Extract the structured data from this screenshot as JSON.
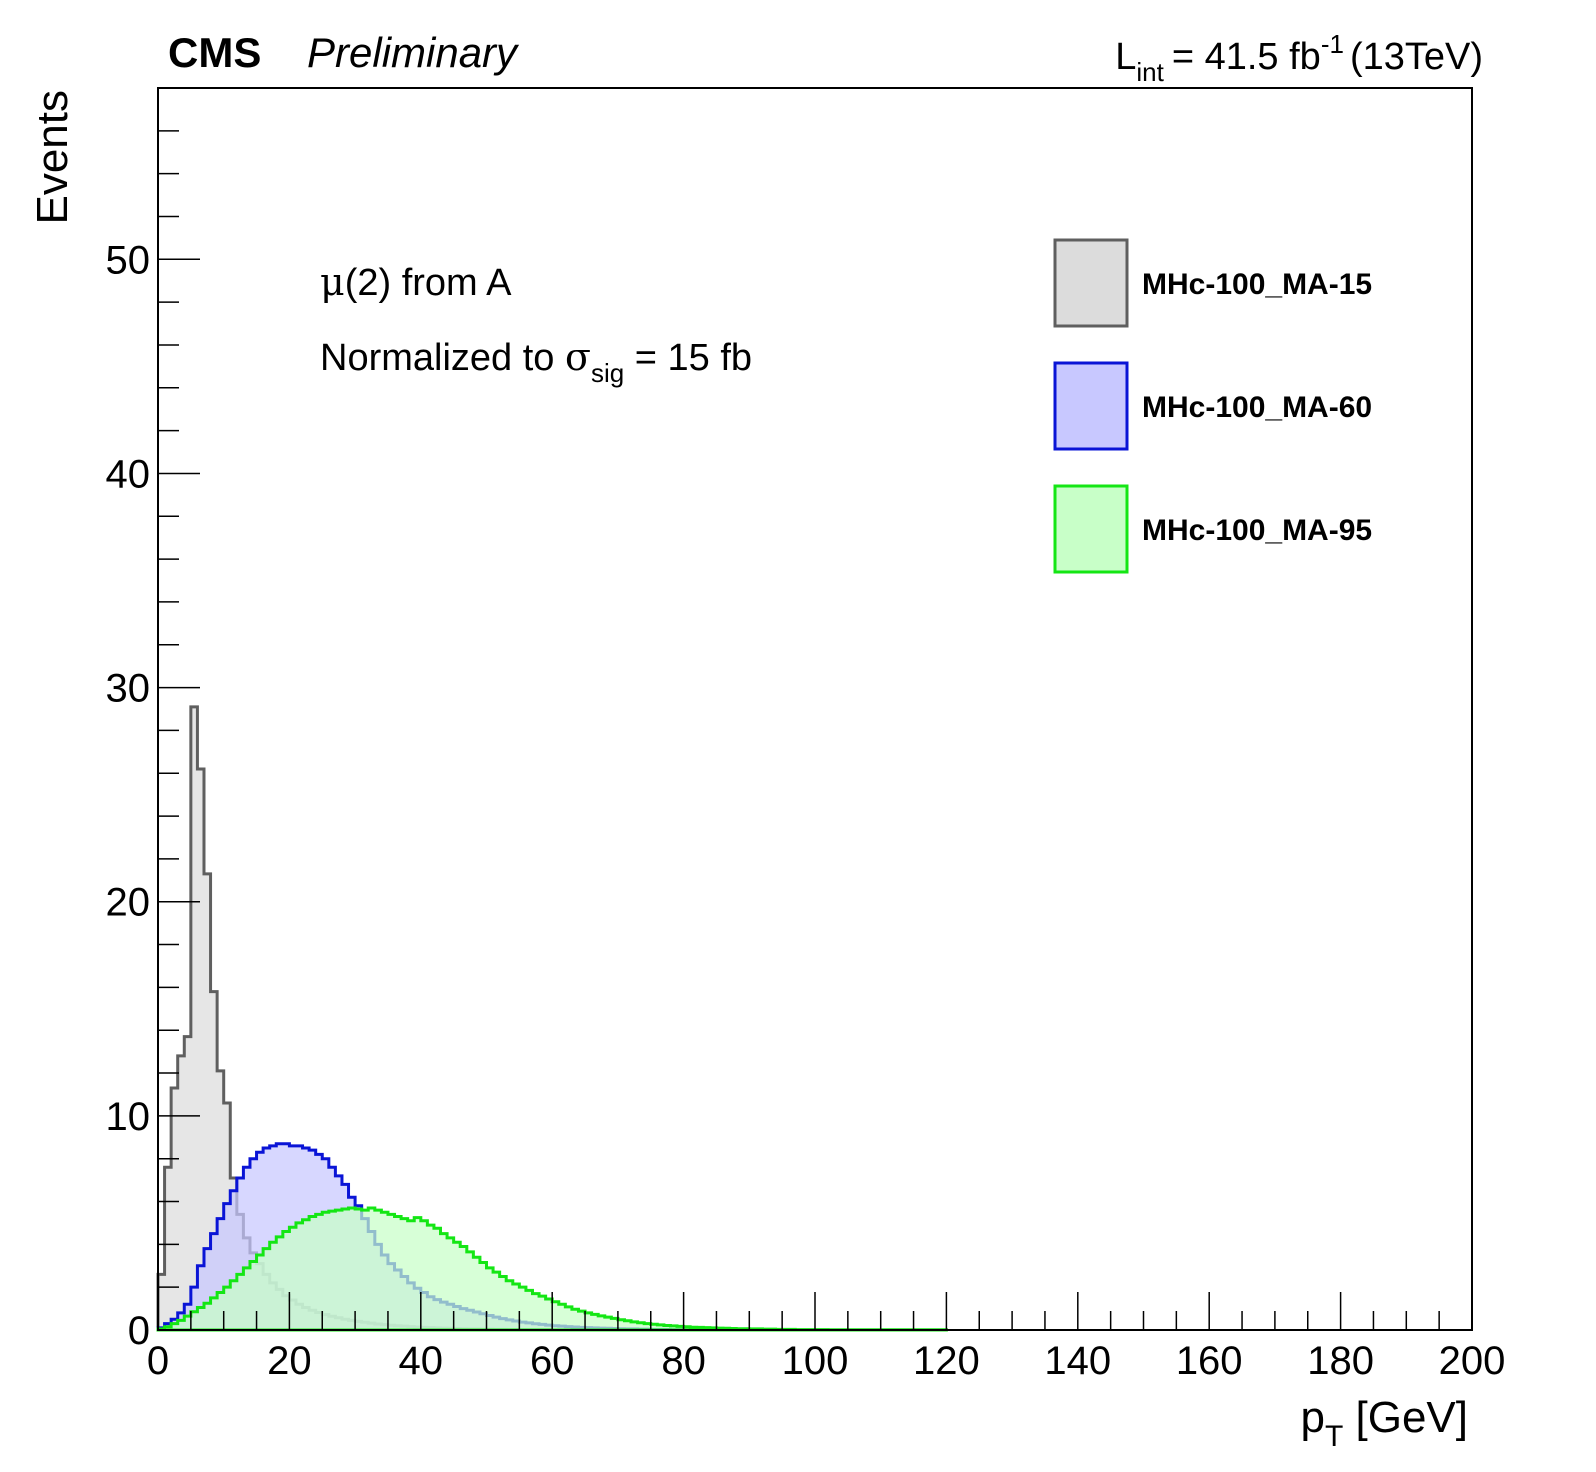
{
  "header": {
    "experiment": "CMS",
    "status": "Preliminary",
    "lumi_prefix": "L",
    "lumi_sub": "int",
    "lumi_value": "= 41.5 fb",
    "lumi_sup": "-1",
    "energy": "(13TeV)"
  },
  "annotations": {
    "line1_mu": "μ",
    "line1_rest": "(2) from A",
    "line2_prefix": "Normalized to ",
    "line2_sigma": "σ",
    "line2_sub": "sig",
    "line2_suffix": " = 15 fb"
  },
  "axes": {
    "x_title_main": "p",
    "x_title_sub": "T",
    "x_title_unit": " [GeV]",
    "y_title": "Events"
  },
  "chart_data": {
    "type": "area",
    "style": "step-histogram",
    "xlim": [
      0,
      200
    ],
    "ylim": [
      0,
      58
    ],
    "x_ticks": [
      0,
      20,
      40,
      60,
      80,
      100,
      120,
      140,
      160,
      180,
      200
    ],
    "y_ticks": [
      0,
      10,
      20,
      30,
      40,
      50
    ],
    "bin_width": 1,
    "legend_position": "top-right",
    "series": [
      {
        "name": "MHc-100_MA-15",
        "stroke": "#5f5f5f",
        "fill": "#dcdcdc",
        "values": [
          2.6,
          7.6,
          11.3,
          12.8,
          13.7,
          29.1,
          26.2,
          21.3,
          15.8,
          12.1,
          10.6,
          7.1,
          5.4,
          4.3,
          3.6,
          3.1,
          2.6,
          2.2,
          1.9,
          1.6,
          1.4,
          1.2,
          1.05,
          0.92,
          0.82,
          0.72,
          0.64,
          0.57,
          0.5,
          0.45,
          0.4,
          0.36,
          0.32,
          0.28,
          0.25,
          0.22,
          0.2,
          0.18,
          0.16,
          0.14,
          0.12,
          0.11,
          0.1,
          0.09,
          0.08,
          0.07,
          0.06,
          0.05,
          0.05,
          0.04,
          0.04,
          0.03,
          0.03,
          0.02,
          0.02,
          0.02,
          0.01,
          0.01,
          0.01,
          0.01
        ]
      },
      {
        "name": "MHc-100_MA-60",
        "stroke": "#0a14d6",
        "fill": "#c8c8ff",
        "values": [
          0.1,
          0.3,
          0.5,
          0.8,
          1.2,
          2.0,
          3.0,
          3.8,
          4.5,
          5.2,
          5.9,
          6.5,
          7.1,
          7.6,
          8.0,
          8.3,
          8.5,
          8.6,
          8.7,
          8.7,
          8.6,
          8.6,
          8.5,
          8.4,
          8.2,
          8.0,
          7.6,
          7.2,
          6.8,
          6.2,
          5.8,
          5.2,
          4.6,
          4.0,
          3.5,
          3.1,
          2.8,
          2.5,
          2.2,
          1.95,
          1.75,
          1.55,
          1.42,
          1.3,
          1.2,
          1.1,
          1.0,
          0.92,
          0.84,
          0.76,
          0.68,
          0.6,
          0.53,
          0.47,
          0.42,
          0.37,
          0.33,
          0.29,
          0.26,
          0.23,
          0.2,
          0.18,
          0.16,
          0.14,
          0.12,
          0.11,
          0.1,
          0.09,
          0.08,
          0.07,
          0.06,
          0.05,
          0.05,
          0.04,
          0.04,
          0.03,
          0.03,
          0.03,
          0.02,
          0.02,
          0.02,
          0.02,
          0.01,
          0.01,
          0.01,
          0.01,
          0.01,
          0.01,
          0.01,
          0.01
        ]
      },
      {
        "name": "MHc-100_MA-95",
        "stroke": "#14e614",
        "fill": "#c8ffc8",
        "values": [
          0.05,
          0.15,
          0.3,
          0.45,
          0.65,
          0.85,
          1.05,
          1.25,
          1.5,
          1.75,
          2.0,
          2.3,
          2.6,
          2.9,
          3.2,
          3.5,
          3.8,
          4.1,
          4.35,
          4.6,
          4.8,
          5.0,
          5.15,
          5.3,
          5.4,
          5.5,
          5.55,
          5.6,
          5.65,
          5.7,
          5.65,
          5.6,
          5.7,
          5.6,
          5.5,
          5.4,
          5.3,
          5.2,
          5.1,
          5.25,
          5.1,
          4.9,
          4.75,
          4.5,
          4.3,
          4.1,
          3.9,
          3.65,
          3.4,
          3.15,
          2.9,
          2.7,
          2.5,
          2.3,
          2.15,
          2.0,
          1.85,
          1.7,
          1.58,
          1.45,
          1.32,
          1.2,
          1.08,
          0.97,
          0.88,
          0.8,
          0.73,
          0.66,
          0.6,
          0.54,
          0.48,
          0.43,
          0.38,
          0.34,
          0.3,
          0.27,
          0.24,
          0.21,
          0.19,
          0.17,
          0.15,
          0.13,
          0.12,
          0.11,
          0.1,
          0.09,
          0.08,
          0.07,
          0.06,
          0.06,
          0.05,
          0.05,
          0.04,
          0.04,
          0.03,
          0.03,
          0.03,
          0.02,
          0.02,
          0.02,
          0.02,
          0.02,
          0.01,
          0.01,
          0.01,
          0.01,
          0.01,
          0.01,
          0.01,
          0.01,
          0.01,
          0.01,
          0.01,
          0.01,
          0.01,
          0.01,
          0.01,
          0.01,
          0.01,
          0.01
        ]
      }
    ]
  }
}
